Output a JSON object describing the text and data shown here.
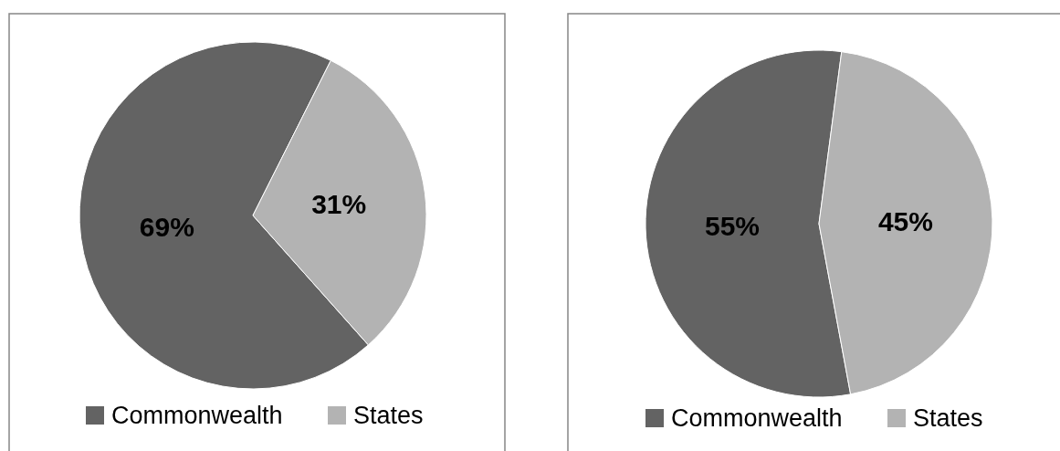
{
  "chart_data": [
    {
      "type": "pie",
      "categories": [
        "Commonwealth",
        "States"
      ],
      "values": [
        69,
        31
      ],
      "colors": [
        "#636363",
        "#b3b3b3"
      ],
      "value_labels": [
        "69%",
        "31%"
      ],
      "legend": "bottom"
    },
    {
      "type": "pie",
      "categories": [
        "Commonwealth",
        "States"
      ],
      "values": [
        55,
        45
      ],
      "colors": [
        "#636363",
        "#b3b3b3"
      ],
      "value_labels": [
        "55%",
        "45%"
      ],
      "legend": "bottom"
    }
  ]
}
